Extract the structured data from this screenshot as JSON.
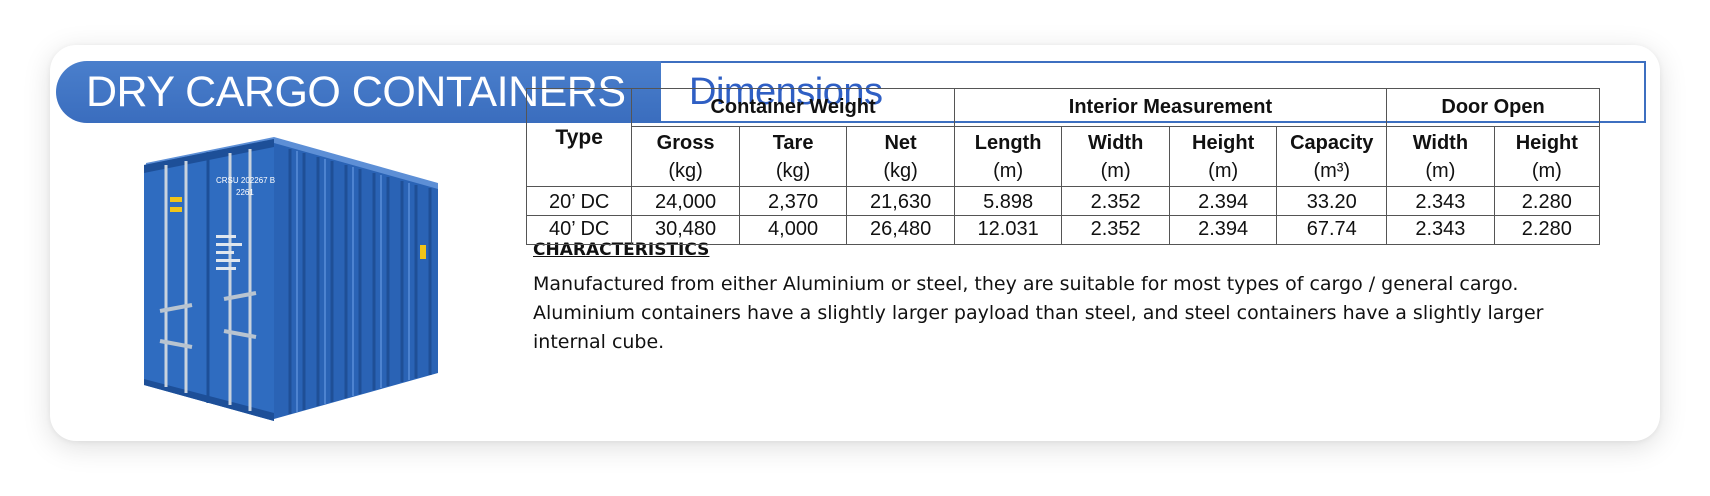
{
  "header": {
    "title": "DRY CARGO CONTAINERS",
    "subtitle": "Dimensions"
  },
  "image": {
    "icon": "shipping-container-illustration",
    "body_color": "#2f6cc0",
    "door_marking_1": "CRSU 202267 B",
    "door_marking_2": "2261"
  },
  "table": {
    "type_header": "Type",
    "groups": {
      "weight": "Container Weight",
      "interior": "Interior Measurement",
      "door": "Door Open"
    },
    "columns": {
      "gross": {
        "label": "Gross",
        "unit": "(kg)"
      },
      "tare": {
        "label": "Tare",
        "unit": "(kg)"
      },
      "net": {
        "label": "Net",
        "unit": "(kg)"
      },
      "length": {
        "label": "Length",
        "unit": "(m)"
      },
      "width": {
        "label": "Width",
        "unit": "(m)"
      },
      "height": {
        "label": "Height",
        "unit": "(m)"
      },
      "capacity": {
        "label": "Capacity",
        "unit": "(m³)"
      },
      "door_width": {
        "label": "Width",
        "unit": "(m)"
      },
      "door_height": {
        "label": "Height",
        "unit": "(m)"
      }
    },
    "rows": [
      {
        "type": "20’ DC",
        "gross": "24,000",
        "tare": "2,370",
        "net": "21,630",
        "length": "5.898",
        "width": "2.352",
        "height": "2.394",
        "capacity": "33.20",
        "door_width": "2.343",
        "door_height": "2.280"
      },
      {
        "type": "40’ DC",
        "gross": "30,480",
        "tare": "4,000",
        "net": "26,480",
        "length": "12.031",
        "width": "2.352",
        "height": "2.394",
        "capacity": "67.74",
        "door_width": "2.343",
        "door_height": "2.280"
      }
    ]
  },
  "characteristics": {
    "heading": "CHARACTERISTICS",
    "body": "Manufactured from either Aluminium or steel, they are suitable for most types of cargo / general cargo. Aluminium containers have a slightly larger payload than steel, and steel containers have a slightly larger internal cube."
  }
}
